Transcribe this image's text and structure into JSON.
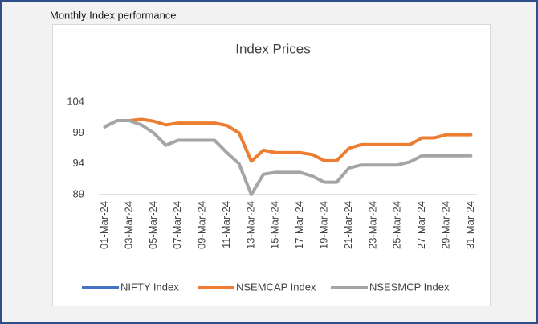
{
  "heading": "Monthly Index performance",
  "chart_data": {
    "type": "line",
    "title": "Index Prices",
    "categories": [
      "01-Mar-24",
      null,
      "03-Mar-24",
      null,
      "05-Mar-24",
      null,
      "07-Mar-24",
      null,
      "09-Mar-24",
      null,
      "11-Mar-24",
      null,
      "13-Mar-24",
      null,
      "15-Mar-24",
      null,
      "17-Mar-24",
      null,
      "19-Mar-24",
      null,
      "21-Mar-24",
      null,
      "23-Mar-24",
      null,
      "25-Mar-24",
      null,
      "27-Mar-24",
      null,
      "29-Mar-24",
      null,
      "31-Mar-24"
    ],
    "series": [
      {
        "name": "NIFTY Index",
        "color": "#4472c4",
        "values": [
          null,
          null,
          null,
          null,
          null,
          null,
          null,
          null,
          null,
          null,
          null,
          null,
          null,
          null,
          null,
          null,
          null,
          null,
          null,
          null,
          null,
          null,
          null,
          null,
          null,
          null,
          null,
          null,
          null,
          null,
          null
        ]
      },
      {
        "name": "NSEMCAP Index",
        "color": "#ed7d31",
        "values": [
          100,
          101,
          101,
          101.2,
          100.9,
          100.3,
          100.6,
          100.6,
          100.6,
          100.6,
          100.2,
          99,
          94.4,
          96.2,
          95.8,
          95.8,
          95.8,
          95.5,
          94.5,
          94.5,
          96.5,
          97.1,
          97.1,
          97.1,
          97.1,
          97.1,
          98.2,
          98.2,
          98.7,
          98.7,
          98.7
        ]
      },
      {
        "name": "NSESMCP Index",
        "color": "#a5a5a5",
        "values": [
          100,
          101,
          101,
          100.3,
          99,
          97,
          97.8,
          97.8,
          97.8,
          97.8,
          95.8,
          94,
          89,
          92.3,
          92.6,
          92.6,
          92.6,
          92,
          91,
          91,
          93.3,
          93.8,
          93.8,
          93.8,
          93.8,
          94.3,
          95.3,
          95.3,
          95.3,
          95.3,
          95.3
        ]
      }
    ],
    "ylim": [
      89,
      104
    ],
    "yticks": [
      89,
      94,
      99,
      104
    ],
    "grid": false,
    "legend": "bottom"
  }
}
